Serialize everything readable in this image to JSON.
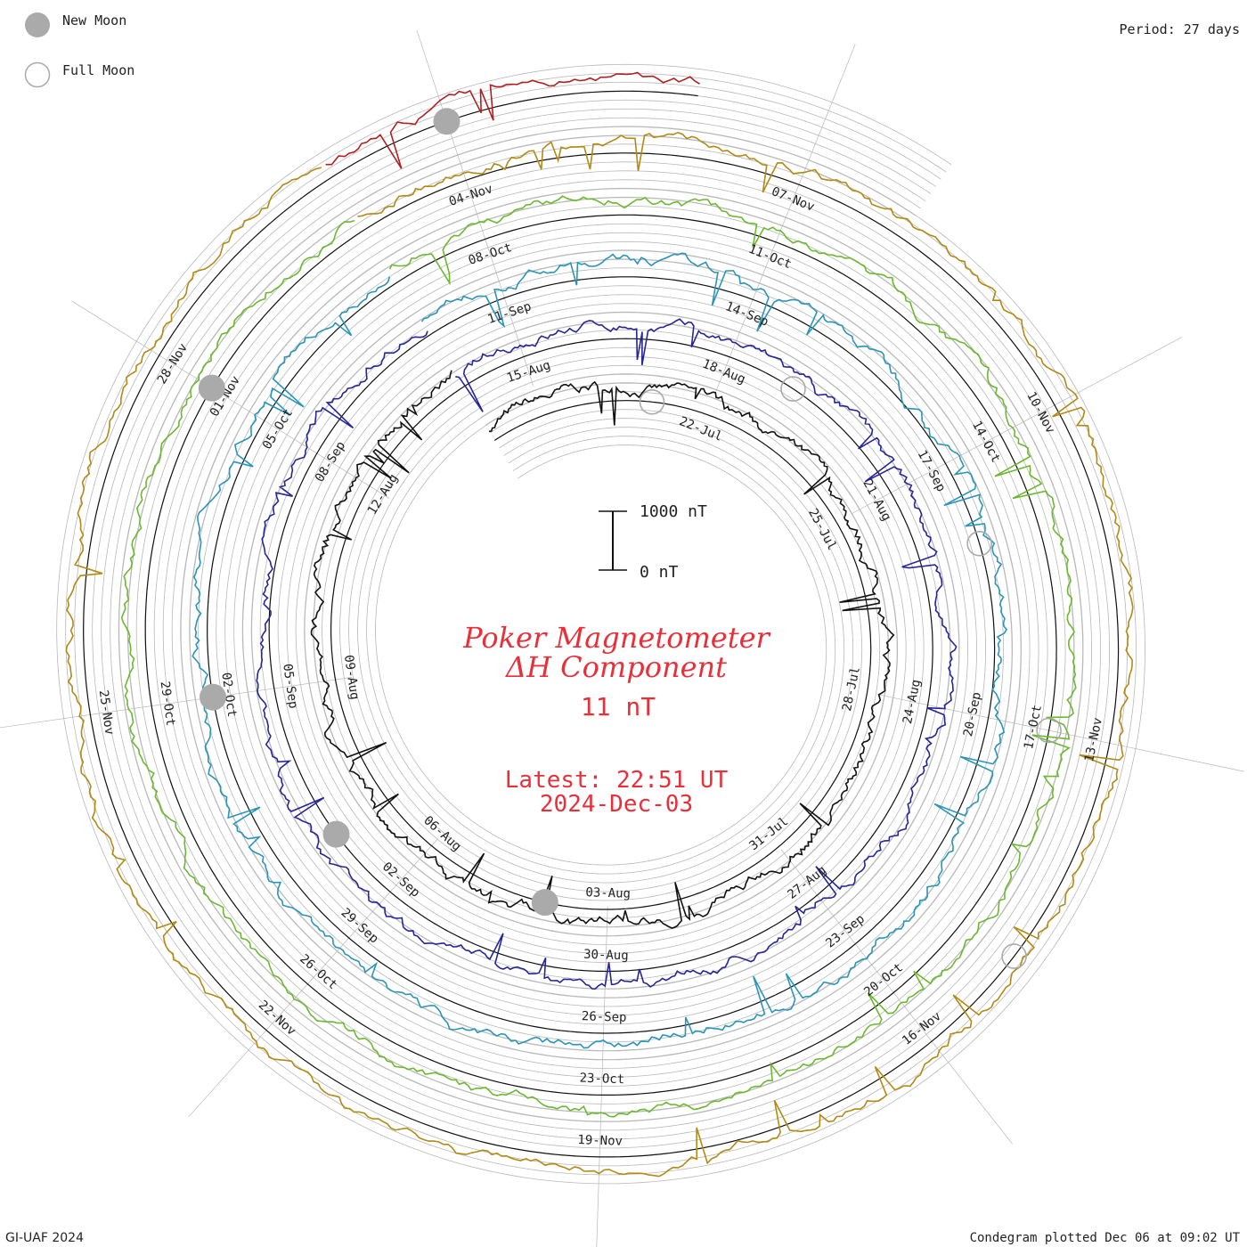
{
  "legend": {
    "new_moon": "New Moon",
    "full_moon": "Full Moon"
  },
  "period": "Period: 27 days",
  "center": {
    "title_line1": "Poker Magnetometer",
    "title_line2": "ΔH Component",
    "value": "11 nT",
    "latest_line1": "Latest: 22:51 UT",
    "latest_line2": "2024-Dec-03"
  },
  "scale_bar": {
    "top_label": "1000 nT",
    "bottom_label": "0 nT"
  },
  "footer": {
    "left": "GI-UAF 2024",
    "right": "Condegram plotted Dec 06 at 09:02 UT"
  },
  "colors": {
    "title_red": "#e8303a",
    "moon_gray": "#aaaaaa",
    "grid_gray": "#b8b8b8"
  },
  "chart_data": {
    "type": "line",
    "title": "Poker Magnetometer ΔH Component",
    "plot_style": "condegram-spiral",
    "period_days": 27,
    "start_date": "2024-07-18",
    "end_date": "2024-12-03",
    "unit": "nT",
    "scale_bar_nT": [
      0,
      1000
    ],
    "date_labels": [
      "22-Jul",
      "25-Jul",
      "28-Jul",
      "31-Jul",
      "03-Aug",
      "06-Aug",
      "09-Aug",
      "12-Aug",
      "15-Aug",
      "18-Aug",
      "21-Aug",
      "24-Aug",
      "27-Aug",
      "30-Aug",
      "02-Sep",
      "05-Sep",
      "08-Sep",
      "11-Sep",
      "14-Sep",
      "17-Sep",
      "20-Sep",
      "23-Sep",
      "26-Sep",
      "29-Sep",
      "02-Oct",
      "05-Oct",
      "08-Oct",
      "11-Oct",
      "14-Oct",
      "17-Oct",
      "20-Oct",
      "23-Oct",
      "26-Oct",
      "29-Oct",
      "01-Nov",
      "04-Nov",
      "07-Nov",
      "10-Nov",
      "13-Nov",
      "16-Nov",
      "19-Nov",
      "22-Nov",
      "25-Nov",
      "28-Nov"
    ],
    "new_moons": [
      "2024-08-04",
      "2024-09-03",
      "2024-10-02",
      "2024-11-01",
      "2024-12-01"
    ],
    "full_moons": [
      "2024-07-21",
      "2024-08-19",
      "2024-09-18",
      "2024-10-17",
      "2024-11-15"
    ],
    "series": [
      {
        "start": "2024-07-18",
        "end": "2024-08-14",
        "color": "#111111"
      },
      {
        "start": "2024-08-14",
        "end": "2024-09-10",
        "color": "#262696"
      },
      {
        "start": "2024-09-10",
        "end": "2024-10-07",
        "color": "#2a95b8"
      },
      {
        "start": "2024-10-07",
        "end": "2024-11-03",
        "color": "#6cb830"
      },
      {
        "start": "2024-11-03",
        "end": "2024-11-30",
        "color": "#b28a14"
      },
      {
        "start": "2024-11-30",
        "end": "2024-12-03",
        "color": "#b02020"
      }
    ]
  }
}
